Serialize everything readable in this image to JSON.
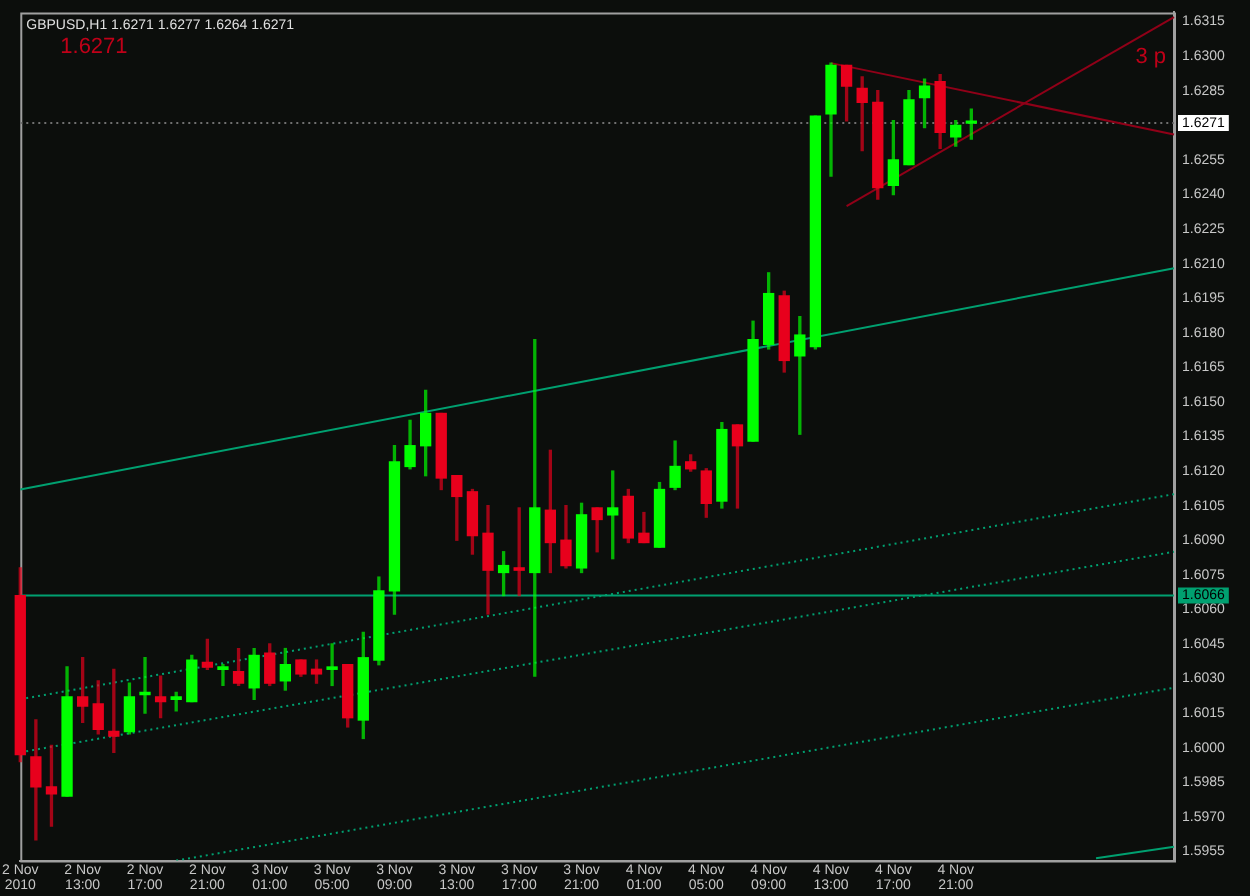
{
  "chart_data": {
    "type": "candlestick",
    "title": "GBPUSD,H1 1.6271 1.6277 1.6264 1.6271",
    "annotations": [
      "1.6271",
      "3 p"
    ],
    "categories": [
      "2 Nov 2010",
      null,
      null,
      null,
      "2 Nov 13:00",
      null,
      null,
      null,
      "2 Nov 17:00",
      null,
      null,
      null,
      "2 Nov 21:00",
      null,
      null,
      null,
      "3 Nov 01:00",
      null,
      null,
      null,
      "3 Nov 05:00",
      null,
      null,
      null,
      "3 Nov 09:00",
      null,
      null,
      null,
      "3 Nov 13:00",
      null,
      null,
      null,
      "3 Nov 17:00",
      null,
      null,
      null,
      "3 Nov 21:00",
      null,
      null,
      null,
      "4 Nov 01:00",
      null,
      null,
      null,
      "4 Nov 05:00",
      null,
      null,
      null,
      "4 Nov 09:00",
      null,
      null,
      null,
      "4 Nov 13:00",
      null,
      null,
      null,
      "4 Nov 17:00",
      null,
      null,
      null,
      "4 Nov 21:00",
      null,
      null,
      null,
      null,
      null,
      null,
      null,
      null,
      null,
      null,
      null,
      null,
      null,
      null
    ],
    "ohlc": [
      [
        1.6066,
        1.6078,
        1.5994,
        1.5997
      ],
      [
        1.5996,
        1.6012,
        1.596,
        1.5983
      ],
      [
        1.5983,
        1.6001,
        1.5966,
        1.598
      ],
      [
        1.5979,
        1.6035,
        1.5979,
        1.6022
      ],
      [
        1.6022,
        1.6039,
        1.6011,
        1.6018
      ],
      [
        1.6019,
        1.6029,
        1.6006,
        1.6008
      ],
      [
        1.6007,
        1.6034,
        1.5998,
        1.6005
      ],
      [
        1.6007,
        1.6028,
        1.6006,
        1.6022
      ],
      [
        1.6023,
        1.6039,
        1.6015,
        1.6024
      ],
      [
        1.6022,
        1.6031,
        1.6013,
        1.602
      ],
      [
        1.6021,
        1.6024,
        1.6016,
        1.6022
      ],
      [
        1.602,
        1.604,
        1.602,
        1.6038
      ],
      [
        1.6037,
        1.6047,
        1.6034,
        1.6035
      ],
      [
        1.6034,
        1.6036,
        1.6027,
        1.6035
      ],
      [
        1.6033,
        1.6043,
        1.6027,
        1.6028
      ],
      [
        1.6026,
        1.6043,
        1.6021,
        1.604
      ],
      [
        1.6041,
        1.6045,
        1.6027,
        1.6028
      ],
      [
        1.6029,
        1.6043,
        1.6025,
        1.6036
      ],
      [
        1.6038,
        1.6038,
        1.6031,
        1.6032
      ],
      [
        1.6034,
        1.6038,
        1.6028,
        1.6032
      ],
      [
        1.6034,
        1.6045,
        1.6027,
        1.6035
      ],
      [
        1.6036,
        1.6036,
        1.6009,
        1.6013
      ],
      [
        1.6012,
        1.605,
        1.6004,
        1.6039
      ],
      [
        1.6038,
        1.6074,
        1.6036,
        1.6068
      ],
      [
        1.6068,
        1.6131,
        1.6058,
        1.6124
      ],
      [
        1.6122,
        1.6142,
        1.6121,
        1.6131
      ],
      [
        1.6131,
        1.6155,
        1.6118,
        1.6145
      ],
      [
        1.6145,
        1.6145,
        1.6112,
        1.6117
      ],
      [
        1.6118,
        1.6118,
        1.609,
        1.6109
      ],
      [
        1.6111,
        1.6112,
        1.6084,
        1.6092
      ],
      [
        1.6093,
        1.6105,
        1.6058,
        1.6077
      ],
      [
        1.6076,
        1.6085,
        1.6066,
        1.6079
      ],
      [
        1.6078,
        1.6104,
        1.6066,
        1.6077
      ],
      [
        1.6076,
        1.6177,
        1.6031,
        1.6104
      ],
      [
        1.6103,
        1.6129,
        1.6076,
        1.6089
      ],
      [
        1.609,
        1.6105,
        1.6078,
        1.6079
      ],
      [
        1.6078,
        1.6106,
        1.6076,
        1.6101
      ],
      [
        1.6104,
        1.6104,
        1.6085,
        1.6099
      ],
      [
        1.6101,
        1.612,
        1.6082,
        1.6104
      ],
      [
        1.6109,
        1.6112,
        1.6089,
        1.6091
      ],
      [
        1.6093,
        1.6102,
        1.6089,
        1.6089
      ],
      [
        1.6087,
        1.6115,
        1.6087,
        1.6112
      ],
      [
        1.6113,
        1.6133,
        1.6112,
        1.6122
      ],
      [
        1.6124,
        1.6127,
        1.612,
        1.6121
      ],
      [
        1.612,
        1.6121,
        1.61,
        1.6106
      ],
      [
        1.6107,
        1.6141,
        1.6104,
        1.6138
      ],
      [
        1.614,
        1.614,
        1.6104,
        1.6131
      ],
      [
        1.6133,
        1.6185,
        1.6133,
        1.6177
      ],
      [
        1.6175,
        1.6206,
        1.6173,
        1.6197
      ],
      [
        1.6196,
        1.6198,
        1.6163,
        1.6168
      ],
      [
        1.617,
        1.6187,
        1.6136,
        1.6179
      ],
      [
        1.6174,
        1.6274,
        1.6173,
        1.6274
      ],
      [
        1.6275,
        1.6297,
        1.6248,
        1.6296
      ],
      [
        1.6296,
        1.6296,
        1.6272,
        1.6287
      ],
      [
        1.6286,
        1.6291,
        1.6259,
        1.628
      ],
      [
        1.628,
        1.6285,
        1.6238,
        1.6243
      ],
      [
        1.6244,
        1.6272,
        1.624,
        1.6255
      ],
      [
        1.6253,
        1.6285,
        1.6253,
        1.6281
      ],
      [
        1.6282,
        1.629,
        1.6269,
        1.6287
      ],
      [
        1.6289,
        1.6292,
        1.626,
        1.6267
      ],
      [
        1.6265,
        1.6272,
        1.6261,
        1.627
      ],
      [
        1.6271,
        1.6277,
        1.6264,
        1.6271
      ],
      null,
      null,
      null,
      null,
      null,
      null,
      null,
      null,
      null,
      null,
      null,
      null,
      null
    ],
    "colors": [
      "#e8001c",
      "#e8001c",
      "#e8001c",
      "#00ff00",
      "#e8001c",
      "#e8001c",
      "#e8001c",
      "#00ff00",
      "#00ff00",
      "#e8001c",
      "#00ff00",
      "#00ff00",
      "#e8001c",
      "#00ff00",
      "#e8001c",
      "#00ff00",
      "#e8001c",
      "#00ff00",
      "#e8001c",
      "#e8001c",
      "#00ff00",
      "#e8001c",
      "#00ff00",
      "#00ff00",
      "#00ff00",
      "#00ff00",
      "#00ff00",
      "#e8001c",
      "#e8001c",
      "#e8001c",
      "#e8001c",
      "#00ff00",
      "#e8001c",
      "#00ff00",
      "#e8001c",
      "#e8001c",
      "#00ff00",
      "#e8001c",
      "#00ff00",
      "#e8001c",
      "#e8001c",
      "#00ff00",
      "#00ff00",
      "#e8001c",
      "#e8001c",
      "#00ff00",
      "#e8001c",
      "#00ff00",
      "#00ff00",
      "#e8001c",
      "#00ff00",
      "#00ff00",
      "#00ff00",
      "#e8001c",
      "#e8001c",
      "#e8001c",
      "#00ff00",
      "#00ff00",
      "#00ff00",
      "#e8001c",
      "#00ff00",
      "#00ff00",
      null,
      null,
      null,
      null,
      null,
      null,
      null,
      null,
      null,
      null,
      null,
      null,
      null
    ],
    "series": [
      {
        "type": "line",
        "color": "#00a070",
        "line_style": "solid",
        "values": [
          1.6112,
          null,
          null,
          null,
          null,
          null,
          null,
          null,
          null,
          null,
          null,
          null,
          null,
          null,
          null,
          null,
          null,
          null,
          null,
          null,
          null,
          null,
          null,
          null,
          null,
          null,
          null,
          null,
          null,
          null,
          null,
          null,
          null,
          null,
          null,
          null,
          null,
          null,
          null,
          null,
          null,
          null,
          null,
          null,
          null,
          null,
          null,
          null,
          null,
          null,
          null,
          null,
          null,
          null,
          null,
          null,
          null,
          null,
          null,
          null,
          null,
          null,
          null,
          null,
          null,
          null,
          null,
          null,
          null,
          null,
          null,
          null,
          null,
          null,
          1.6208
        ]
      },
      {
        "type": "line",
        "color": "#00a070",
        "line_style": "dotted",
        "values": [
          1.6021,
          null,
          null,
          null,
          null,
          null,
          null,
          null,
          null,
          null,
          null,
          null,
          null,
          null,
          null,
          null,
          null,
          null,
          null,
          null,
          null,
          null,
          null,
          null,
          null,
          null,
          null,
          null,
          null,
          null,
          null,
          null,
          null,
          null,
          null,
          null,
          null,
          null,
          null,
          null,
          null,
          null,
          null,
          null,
          null,
          null,
          null,
          null,
          null,
          null,
          null,
          null,
          null,
          null,
          null,
          null,
          null,
          null,
          null,
          null,
          null,
          null,
          null,
          null,
          null,
          null,
          null,
          null,
          null,
          null,
          null,
          null,
          null,
          null,
          1.611
        ]
      },
      {
        "type": "line",
        "color": "#00a070",
        "line_style": "dotted",
        "values": [
          1.5998,
          null,
          null,
          null,
          null,
          null,
          null,
          null,
          null,
          null,
          null,
          null,
          null,
          null,
          null,
          null,
          null,
          null,
          null,
          null,
          null,
          null,
          null,
          null,
          null,
          null,
          null,
          null,
          null,
          null,
          null,
          null,
          null,
          null,
          null,
          null,
          null,
          null,
          null,
          null,
          null,
          null,
          null,
          null,
          null,
          null,
          null,
          null,
          null,
          null,
          null,
          null,
          null,
          null,
          null,
          null,
          null,
          null,
          null,
          null,
          null,
          null,
          null,
          null,
          null,
          null,
          null,
          null,
          null,
          null,
          null,
          null,
          null,
          null,
          1.6085
        ]
      },
      {
        "type": "line",
        "color": "#00a070",
        "line_style": "dotted",
        "values": [
          null,
          null,
          null,
          null,
          null,
          null,
          null,
          null,
          null,
          null,
          1.5951,
          null,
          null,
          null,
          null,
          null,
          null,
          null,
          null,
          null,
          null,
          null,
          null,
          null,
          null,
          null,
          null,
          null,
          null,
          null,
          null,
          null,
          null,
          null,
          null,
          null,
          null,
          null,
          null,
          null,
          null,
          null,
          null,
          null,
          null,
          null,
          null,
          null,
          null,
          null,
          null,
          null,
          null,
          null,
          null,
          null,
          null,
          null,
          null,
          null,
          null,
          null,
          null,
          null,
          null,
          null,
          null,
          null,
          null,
          null,
          null,
          null,
          null,
          null,
          1.6026
        ]
      },
      {
        "type": "line",
        "color": "#00a070",
        "line_style": "solid",
        "values": [
          null,
          null,
          null,
          null,
          null,
          null,
          null,
          null,
          null,
          null,
          null,
          null,
          null,
          null,
          null,
          null,
          null,
          null,
          null,
          null,
          null,
          null,
          null,
          null,
          null,
          null,
          null,
          null,
          null,
          null,
          null,
          null,
          null,
          null,
          null,
          null,
          null,
          null,
          null,
          null,
          null,
          null,
          null,
          null,
          null,
          null,
          null,
          null,
          null,
          null,
          null,
          null,
          null,
          null,
          null,
          null,
          null,
          null,
          null,
          null,
          null,
          null,
          null,
          null,
          null,
          null,
          null,
          null,
          null,
          1.5952,
          null,
          null,
          null,
          null,
          1.5957
        ]
      },
      {
        "type": "line",
        "color": "#900018",
        "line_style": "solid",
        "values": [
          null,
          null,
          null,
          null,
          null,
          null,
          null,
          null,
          null,
          null,
          null,
          null,
          null,
          null,
          null,
          null,
          null,
          null,
          null,
          null,
          null,
          null,
          null,
          null,
          null,
          null,
          null,
          null,
          null,
          null,
          null,
          null,
          null,
          null,
          null,
          null,
          null,
          null,
          null,
          null,
          null,
          null,
          null,
          null,
          null,
          null,
          null,
          null,
          null,
          null,
          null,
          null,
          1.6297,
          null,
          null,
          null,
          null,
          null,
          null,
          null,
          null,
          null,
          null,
          null,
          null,
          null,
          null,
          null,
          null,
          null,
          null,
          null,
          null,
          null,
          1.6266
        ]
      },
      {
        "type": "line",
        "color": "#900018",
        "line_style": "solid",
        "values": [
          null,
          null,
          null,
          null,
          null,
          null,
          null,
          null,
          null,
          null,
          null,
          null,
          null,
          null,
          null,
          null,
          null,
          null,
          null,
          null,
          null,
          null,
          null,
          null,
          null,
          null,
          null,
          null,
          null,
          null,
          null,
          null,
          null,
          null,
          null,
          null,
          null,
          null,
          null,
          null,
          null,
          null,
          null,
          null,
          null,
          null,
          null,
          null,
          null,
          null,
          null,
          null,
          null,
          1.6235,
          null,
          null,
          null,
          null,
          null,
          null,
          null,
          null,
          null,
          null,
          null,
          null,
          null,
          null,
          null,
          null,
          null,
          null,
          null,
          null,
          1.6317
        ]
      }
    ],
    "ref_lines": [
      {
        "axis": "y",
        "value": 1.6271,
        "label": "1.6271",
        "color": "#707070",
        "line_style": "dotted"
      },
      {
        "axis": "y",
        "value": 1.6066,
        "label": "1.6066",
        "color": "#00a070",
        "line_style": "solid"
      }
    ],
    "marker": "none",
    "ylim": [
      1.5951,
      1.6319
    ],
    "yticks": [
      1.5955,
      {
        "value": 1.597,
        "label": "1.5970"
      },
      1.5985,
      {
        "value": 1.6,
        "label": "1.6000"
      },
      1.6015,
      {
        "value": 1.603,
        "label": "1.6030"
      },
      1.6045,
      {
        "value": 1.606,
        "label": "1.6060"
      },
      1.6075,
      {
        "value": 1.609,
        "label": "1.6090"
      },
      1.6105,
      {
        "value": 1.612,
        "label": "1.6120"
      },
      1.6135,
      {
        "value": 1.615,
        "label": "1.6150"
      },
      1.6165,
      {
        "value": 1.618,
        "label": "1.6180"
      },
      1.6195,
      {
        "value": 1.621,
        "label": "1.6210"
      },
      1.6225,
      {
        "value": 1.624,
        "label": "1.6240"
      },
      1.6255,
      1.6285,
      {
        "value": 1.63,
        "label": "1.6300"
      },
      1.6315
    ]
  }
}
